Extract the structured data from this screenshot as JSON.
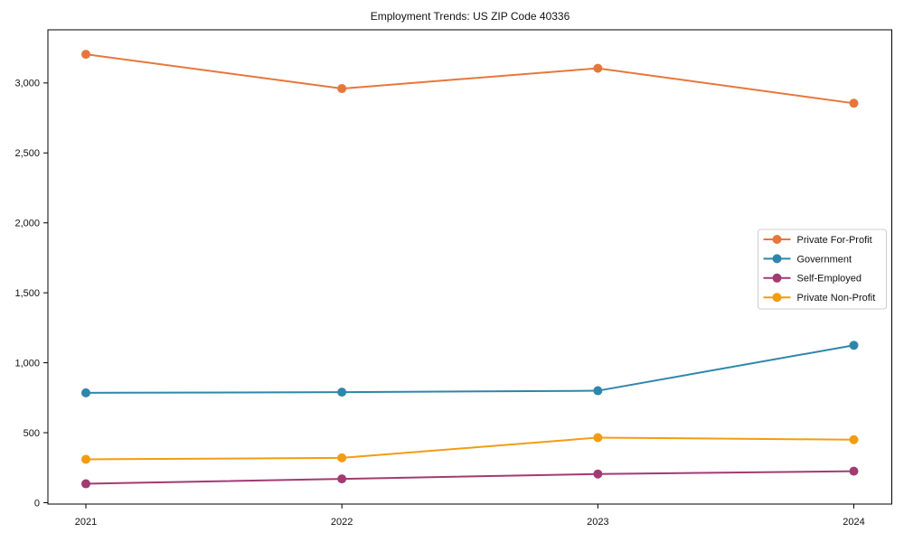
{
  "chart_data": {
    "type": "line",
    "title": "Employment Trends: US ZIP Code 40336",
    "xlabel": "",
    "ylabel": "",
    "categories": [
      "2021",
      "2022",
      "2023",
      "2024"
    ],
    "series": [
      {
        "name": "Private For-Profit",
        "color": "#e8763b",
        "values": [
          3205,
          2960,
          3105,
          2855
        ]
      },
      {
        "name": "Government",
        "color": "#2e86ab",
        "values": [
          785,
          790,
          800,
          1125
        ]
      },
      {
        "name": "Self-Employed",
        "color": "#a23b72",
        "values": [
          135,
          170,
          205,
          225
        ]
      },
      {
        "name": "Private Non-Profit",
        "color": "#f39c11",
        "values": [
          310,
          320,
          465,
          450
        ]
      }
    ],
    "ylim": [
      -10,
      3380
    ],
    "yticks": [
      {
        "value": 0,
        "label": "0"
      },
      {
        "value": 500,
        "label": "500"
      },
      {
        "value": 1000,
        "label": "1,000"
      },
      {
        "value": 1500,
        "label": "1,500"
      },
      {
        "value": 2000,
        "label": "2,000"
      },
      {
        "value": 2500,
        "label": "2,500"
      },
      {
        "value": 3000,
        "label": "3,000"
      }
    ],
    "grid": false,
    "legend_position": "right",
    "spine_color": "#000000",
    "legend_border_color": "#cccccc",
    "legend_bg_color": "#ffffff"
  }
}
